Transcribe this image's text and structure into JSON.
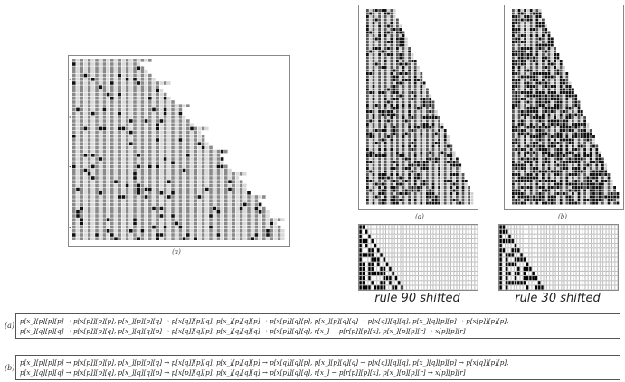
{
  "panels": {
    "left_caption": "(a)",
    "mid_caption": "(a)",
    "right_caption": "(b)",
    "ca_left_title": "rule 90 shifted",
    "ca_right_title": "rule 30 shifted"
  },
  "rules": {
    "a_label": "(a)",
    "a_line1": "p[x_][p][p][p] → p[x[p]][p][p], p[x_][p][p][q] → p[x[q]][p][q], p[x_][p][q][p] → p[x[p]][q][p], p[x_][p][q][q] → p[x[q]][q][q], p[x_][q][p][p] → p[x[p]][p][p],",
    "a_line2": "p[x_][q][p][q] → p[x[p]][p][q], p[x_][q][q][p] → p[x[q]][q][p], p[x_][q][q][q] → p[x[p]][q][q], r[x_] → p[r[p]][p][x], p[x_][p][p][r] → x[p][p][r]",
    "b_label": "(b)",
    "b_line1": "p[x_][p][p][p] → p[x[p]][p][p], p[x_][p][p][q] → p[x[q]][p][q], p[x_][p][q][p] → p[x[q]][q][p], p[x_][p][q][q] → p[x[q]][q][q], p[x_][q][p][p] → p[x[q]][p][p],",
    "b_line2": "p[x_][q][p][q] → p[x[p]][p][q], p[x_][q][q][p] → p[x[p]][q][p], p[x_][q][q][q] → p[x[p]][q][q], r[x_] → p[r[p]][p][x], p[x_][p][p][r] → x[p][p][r]"
  }
}
